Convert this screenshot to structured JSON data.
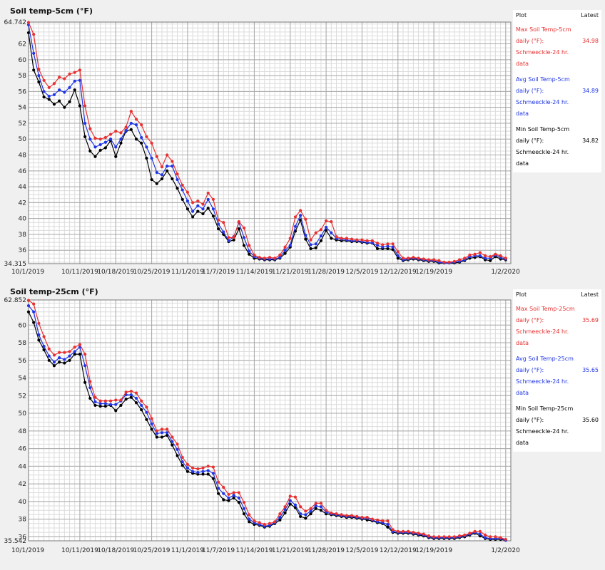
{
  "colors": {
    "max": "#e83030",
    "avg": "#1f35e6",
    "min": "#000000",
    "grid_major": "#a9a9a9",
    "grid_minor": "#dcdcdc"
  },
  "chart_data": [
    {
      "type": "line",
      "title": "Soil temp-5cm (°F)",
      "x_tick_labels": [
        "10/1/2019",
        "10/11/2019",
        "10/18/2019",
        "10/25/2019",
        "11/1/2019",
        "11/7/2019",
        "11/14/2019",
        "11/21/2019",
        "11/28/2019",
        "12/5/2019",
        "12/12/2019",
        "12/19/2019",
        "1/2/2020"
      ],
      "x_tick_days": [
        0,
        10,
        17,
        24,
        31,
        37,
        44,
        51,
        58,
        65,
        72,
        79,
        93
      ],
      "x_range": [
        0,
        94
      ],
      "ylim": [
        34.315,
        64.742
      ],
      "y_tick_labels": [
        "64.742",
        "62",
        "60",
        "58",
        "56",
        "54",
        "52",
        "50",
        "48",
        "46",
        "44",
        "42",
        "40",
        "38",
        "36",
        "34.315"
      ],
      "grid": true,
      "legend_header": {
        "plot": "Plot",
        "latest": "Latest"
      },
      "series": [
        {
          "key": "max",
          "name": "Max Soil Temp-5cm daily (°F): Schmeeckle-24 hr. data",
          "latest": "34.98",
          "values": [
            64.7,
            63.2,
            58.8,
            57.4,
            56.5,
            57.0,
            57.8,
            57.6,
            58.2,
            58.4,
            58.7,
            54.2,
            51.3,
            50.1,
            50.0,
            50.2,
            50.6,
            51.0,
            50.8,
            51.5,
            53.5,
            52.5,
            51.8,
            50.3,
            49.5,
            47.8,
            46.5,
            48.0,
            47.2,
            45.6,
            44.2,
            43.3,
            42.0,
            42.2,
            41.8,
            43.2,
            42.4,
            39.8,
            39.5,
            37.6,
            37.6,
            39.6,
            38.8,
            36.6,
            35.4,
            35.1,
            35.0,
            35.1,
            35.0,
            35.4,
            36.4,
            37.5,
            40.2,
            41.0,
            39.9,
            37.3,
            38.2,
            38.6,
            39.7,
            39.6,
            37.7,
            37.5,
            37.5,
            37.4,
            37.3,
            37.3,
            37.2,
            37.2,
            36.9,
            36.7,
            36.8,
            36.8,
            35.8,
            35.0,
            35.0,
            35.1,
            35.0,
            34.9,
            34.8,
            34.8,
            34.7,
            34.5,
            34.5,
            34.6,
            34.8,
            35.0,
            35.4,
            35.5,
            35.7,
            35.3,
            35.2,
            35.5,
            35.3,
            35.0
          ]
        },
        {
          "key": "avg",
          "name": "Avg Soil Temp-5cm daily (°F): Schmeeckle-24 hr. data",
          "latest": "34.89",
          "values": [
            64.4,
            60.8,
            58.0,
            56.0,
            55.4,
            55.6,
            56.2,
            55.9,
            56.5,
            57.3,
            57.4,
            52.0,
            50.0,
            49.0,
            49.3,
            49.6,
            50.0,
            49.0,
            50.0,
            51.1,
            52.0,
            51.8,
            50.2,
            49.0,
            47.6,
            45.8,
            45.5,
            46.6,
            46.6,
            44.9,
            43.6,
            42.2,
            40.9,
            41.6,
            41.2,
            42.4,
            41.2,
            39.3,
            38.3,
            37.2,
            37.7,
            39.5,
            37.6,
            35.9,
            35.2,
            35.0,
            34.9,
            34.9,
            34.9,
            35.1,
            36.0,
            36.6,
            39.0,
            40.4,
            37.9,
            36.7,
            36.8,
            37.8,
            38.9,
            38.2,
            37.5,
            37.4,
            37.3,
            37.2,
            37.2,
            37.1,
            37.0,
            36.9,
            36.6,
            36.4,
            36.5,
            36.4,
            35.3,
            34.8,
            34.9,
            35.0,
            34.9,
            34.8,
            34.7,
            34.7,
            34.5,
            34.4,
            34.4,
            34.5,
            34.6,
            34.8,
            35.2,
            35.3,
            35.3,
            35.0,
            35.0,
            35.4,
            35.1,
            34.9
          ]
        },
        {
          "key": "min",
          "name": "Min Soil Temp-5cm daily (°F): Schmeeckle-24 hr. data",
          "latest": "34.82",
          "values": [
            63.4,
            58.7,
            57.2,
            55.3,
            55.0,
            54.4,
            54.8,
            54.0,
            54.7,
            56.2,
            54.2,
            50.3,
            48.5,
            47.8,
            48.6,
            48.9,
            49.8,
            47.8,
            49.5,
            51.0,
            51.2,
            50.0,
            49.5,
            47.6,
            44.9,
            44.4,
            45.0,
            46.0,
            45.0,
            43.8,
            42.4,
            41.2,
            40.2,
            40.9,
            40.6,
            41.3,
            40.3,
            38.7,
            38.0,
            37.1,
            37.3,
            38.7,
            36.6,
            35.5,
            35.0,
            34.9,
            34.8,
            34.8,
            34.8,
            35.0,
            35.6,
            36.4,
            38.4,
            39.8,
            37.4,
            36.2,
            36.3,
            37.2,
            38.5,
            37.5,
            37.3,
            37.2,
            37.2,
            37.1,
            37.1,
            37.0,
            36.9,
            36.9,
            36.2,
            36.2,
            36.2,
            36.1,
            35.0,
            34.7,
            34.8,
            34.9,
            34.8,
            34.7,
            34.6,
            34.6,
            34.4,
            34.4,
            34.4,
            34.4,
            34.5,
            34.7,
            35.0,
            35.1,
            35.2,
            34.8,
            34.7,
            35.2,
            34.9,
            34.8
          ]
        }
      ]
    },
    {
      "type": "line",
      "title": "Soil temp-25cm (°F)",
      "x_tick_labels": [
        "10/1/2019",
        "10/11/2019",
        "10/18/2019",
        "10/25/2019",
        "11/1/2019",
        "11/7/2019",
        "11/14/2019",
        "11/21/2019",
        "11/28/2019",
        "12/5/2019",
        "12/12/2019",
        "12/19/2019",
        "1/2/2020"
      ],
      "x_tick_days": [
        0,
        10,
        17,
        24,
        31,
        37,
        44,
        51,
        58,
        65,
        72,
        79,
        93
      ],
      "x_range": [
        0,
        94
      ],
      "ylim": [
        35.542,
        62.852
      ],
      "y_tick_labels": [
        "62.852",
        "60",
        "58",
        "56",
        "54",
        "52",
        "50",
        "48",
        "46",
        "44",
        "42",
        "40",
        "38",
        "36",
        "35.542"
      ],
      "grid": true,
      "legend_header": {
        "plot": "Plot",
        "latest": "Latest"
      },
      "series": [
        {
          "key": "max",
          "name": "Max Soil Temp-25cm daily (°F): Schmeeckle-24 hr. data",
          "latest": "35.69",
          "values": [
            62.8,
            62.4,
            60.2,
            58.7,
            57.3,
            56.6,
            56.9,
            56.9,
            57.0,
            57.5,
            57.8,
            56.7,
            53.6,
            51.8,
            51.4,
            51.4,
            51.4,
            51.5,
            51.5,
            52.4,
            52.5,
            52.3,
            51.4,
            50.7,
            49.4,
            48.0,
            48.2,
            48.2,
            47.3,
            46.5,
            45.0,
            44.2,
            43.8,
            43.7,
            43.8,
            44.0,
            43.9,
            42.2,
            41.6,
            40.8,
            41.0,
            41.0,
            39.9,
            38.5,
            37.8,
            37.6,
            37.4,
            37.5,
            37.7,
            38.6,
            39.4,
            40.6,
            40.5,
            39.4,
            38.9,
            39.2,
            39.8,
            39.8,
            39.0,
            38.7,
            38.6,
            38.5,
            38.4,
            38.4,
            38.3,
            38.2,
            38.2,
            38.0,
            37.9,
            37.8,
            37.8,
            36.8,
            36.6,
            36.6,
            36.6,
            36.5,
            36.4,
            36.3,
            36.1,
            36.0,
            36.0,
            36.0,
            36.0,
            36.0,
            36.1,
            36.2,
            36.4,
            36.6,
            36.6,
            36.2,
            36.0,
            36.0,
            35.9,
            35.7
          ]
        },
        {
          "key": "avg",
          "name": "Avg Soil Temp-25cm daily (°F): Schmeeckle-24 hr. data",
          "latest": "35.65",
          "values": [
            62.2,
            61.5,
            58.9,
            57.6,
            56.5,
            55.8,
            56.3,
            56.1,
            56.5,
            57.0,
            57.5,
            55.4,
            52.9,
            51.3,
            51.1,
            51.1,
            51.0,
            51.0,
            51.4,
            52.1,
            52.1,
            51.7,
            50.9,
            50.1,
            48.8,
            47.7,
            47.8,
            47.8,
            46.8,
            45.9,
            44.5,
            43.8,
            43.4,
            43.3,
            43.4,
            43.5,
            43.2,
            41.5,
            40.9,
            40.4,
            40.7,
            40.4,
            39.2,
            38.0,
            37.6,
            37.4,
            37.2,
            37.3,
            37.6,
            38.2,
            39.1,
            40.1,
            39.6,
            38.6,
            38.5,
            38.9,
            39.5,
            39.4,
            38.8,
            38.6,
            38.5,
            38.4,
            38.3,
            38.3,
            38.2,
            38.1,
            38.1,
            37.9,
            37.7,
            37.6,
            37.4,
            36.6,
            36.5,
            36.5,
            36.5,
            36.4,
            36.3,
            36.2,
            36.0,
            35.9,
            35.9,
            35.9,
            35.9,
            35.9,
            36.0,
            36.1,
            36.3,
            36.5,
            36.3,
            35.9,
            35.8,
            35.8,
            35.8,
            35.6
          ]
        },
        {
          "key": "min",
          "name": "Min Soil Temp-25cm daily (°F): Schmeeckle-24 hr. data",
          "latest": "35.60",
          "values": [
            61.5,
            60.3,
            58.3,
            57.2,
            56.0,
            55.4,
            55.8,
            55.7,
            56.0,
            56.7,
            56.7,
            53.5,
            51.7,
            50.9,
            50.8,
            50.8,
            50.9,
            50.3,
            50.9,
            51.6,
            51.8,
            51.2,
            50.4,
            49.3,
            48.2,
            47.3,
            47.3,
            47.5,
            46.4,
            45.2,
            44.1,
            43.4,
            43.2,
            43.1,
            43.1,
            43.1,
            42.6,
            40.9,
            40.2,
            40.1,
            40.4,
            39.9,
            38.6,
            37.7,
            37.4,
            37.3,
            37.1,
            37.2,
            37.5,
            37.9,
            38.7,
            39.7,
            39.3,
            38.3,
            38.1,
            38.6,
            39.2,
            39.0,
            38.6,
            38.5,
            38.4,
            38.3,
            38.2,
            38.2,
            38.1,
            38.0,
            37.9,
            37.8,
            37.6,
            37.5,
            37.1,
            36.5,
            36.4,
            36.4,
            36.4,
            36.3,
            36.2,
            36.1,
            35.9,
            35.8,
            35.8,
            35.8,
            35.8,
            35.8,
            35.9,
            36.0,
            36.2,
            36.4,
            36.1,
            35.8,
            35.7,
            35.7,
            35.7,
            35.6
          ]
        }
      ]
    }
  ]
}
